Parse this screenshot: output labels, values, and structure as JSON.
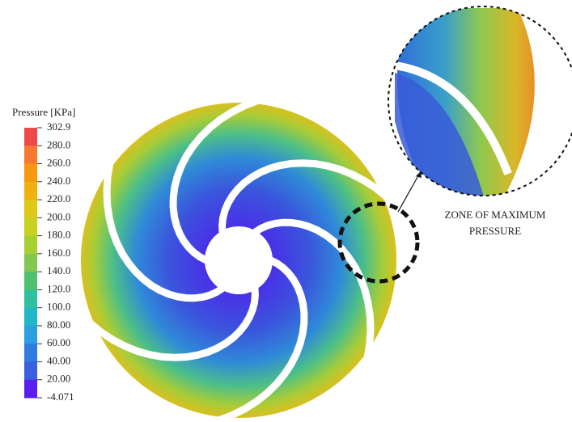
{
  "colorbar": {
    "title": "Pressure [KPa]",
    "ticks": [
      "302.9",
      "280.0",
      "260.0",
      "240.0",
      "220.0",
      "200.0",
      "180.0",
      "160.0",
      "140.0",
      "120.0",
      "100.0",
      "80.00",
      "60.00",
      "40.00",
      "20.00",
      "-4.071"
    ]
  },
  "annotation": {
    "lines": [
      "ZONE OF MAXIMUM",
      "PRESSURE"
    ]
  }
}
